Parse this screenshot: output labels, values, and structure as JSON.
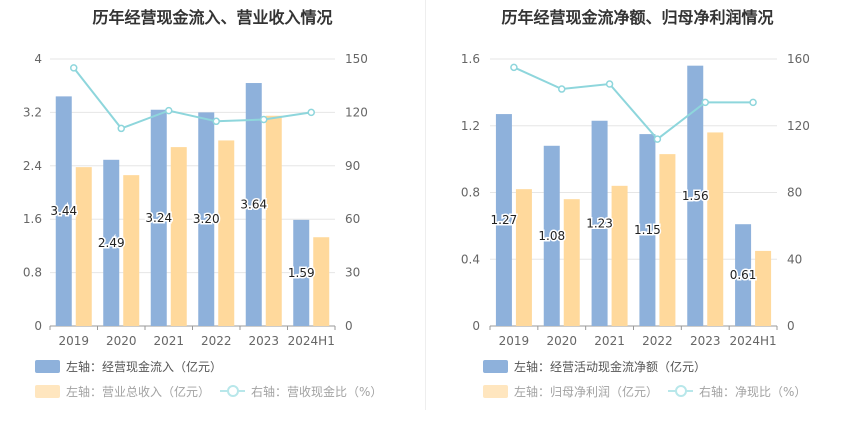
{
  "chart_data": [
    {
      "type": "bar",
      "title": "历年经营现金流入、营业收入情况",
      "categories": [
        "2019",
        "2020",
        "2021",
        "2022",
        "2023",
        "2024H1"
      ],
      "left_axis": {
        "ylim": [
          0,
          4
        ],
        "ticks": [
          "0",
          "0.8",
          "1.6",
          "2.4",
          "3.2",
          "4"
        ]
      },
      "right_axis": {
        "ylim": [
          0,
          150
        ],
        "ticks": [
          "0",
          "30",
          "60",
          "90",
          "120",
          "150"
        ]
      },
      "series": [
        {
          "name": "左轴：经营现金流入（亿元）",
          "axis": "left",
          "kind": "bar",
          "color": "#8eb1db",
          "values": [
            3.44,
            2.49,
            3.24,
            3.2,
            3.64,
            1.59
          ],
          "labels": [
            "3.44",
            "2.49",
            "3.24",
            "3.20",
            "3.64",
            "1.59"
          ]
        },
        {
          "name": "左轴：营业总收入（亿元）",
          "axis": "left",
          "kind": "bar",
          "color": "#ffd99c",
          "values": [
            2.38,
            2.26,
            2.68,
            2.78,
            3.15,
            1.33
          ]
        },
        {
          "name": "右轴：营收现金比（%）",
          "axis": "right",
          "kind": "line",
          "color": "#8ed6dc",
          "values": [
            145,
            111,
            121,
            115,
            116,
            120
          ]
        }
      ],
      "grid": true,
      "legend_position": "bottom"
    },
    {
      "type": "bar",
      "title": "历年经营现金流净额、归母净利润情况",
      "categories": [
        "2019",
        "2020",
        "2021",
        "2022",
        "2023",
        "2024H1"
      ],
      "left_axis": {
        "ylim": [
          0,
          1.6
        ],
        "ticks": [
          "0",
          "0.4",
          "0.8",
          "1.2",
          "1.6"
        ]
      },
      "right_axis": {
        "ylim": [
          0,
          160
        ],
        "ticks": [
          "0",
          "40",
          "80",
          "120",
          "160"
        ]
      },
      "series": [
        {
          "name": "左轴：经营活动现金流净额（亿元）",
          "axis": "left",
          "kind": "bar",
          "color": "#8eb1db",
          "values": [
            1.27,
            1.08,
            1.23,
            1.15,
            1.56,
            0.61
          ],
          "labels": [
            "1.27",
            "1.08",
            "1.23",
            "1.15",
            "1.56",
            "0.61"
          ]
        },
        {
          "name": "左轴：归母净利润（亿元）",
          "axis": "left",
          "kind": "bar",
          "color": "#ffd99c",
          "values": [
            0.82,
            0.76,
            0.84,
            1.03,
            1.16,
            0.45
          ]
        },
        {
          "name": "右轴：净现比（%）",
          "axis": "right",
          "kind": "line",
          "color": "#8ed6dc",
          "values": [
            155,
            142,
            145,
            112,
            134,
            134
          ]
        }
      ],
      "grid": true,
      "legend_position": "bottom"
    }
  ]
}
